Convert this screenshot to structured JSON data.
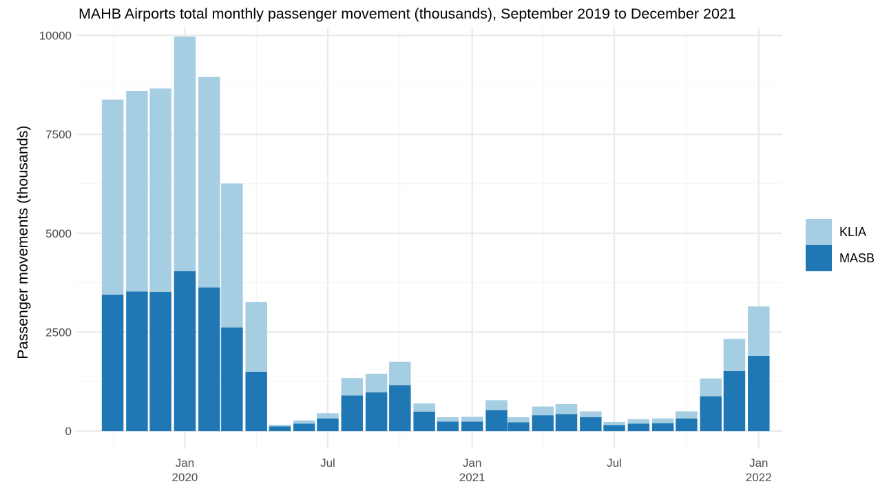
{
  "chart_data": {
    "type": "bar",
    "stacked": true,
    "title": "MAHB Airports total monthly passenger movement (thousands), September 2019 to December 2021",
    "xlabel": "",
    "ylabel": "Passenger movements (thousands)",
    "ylim": [
      -450,
      10200
    ],
    "yticks": [
      "0",
      "2500",
      "5000",
      "7500",
      "10000"
    ],
    "ytick_values": [
      0,
      2500,
      5000,
      7500,
      10000
    ],
    "grid": true,
    "legend_position": "right",
    "x_axis": "date",
    "xlim": [
      "2019-08-15",
      "2022-01-31"
    ],
    "xtick_labels": [
      {
        "date": "2020-01-01",
        "line1": "Jan",
        "line2": "2020"
      },
      {
        "date": "2020-07-01",
        "line1": "Jul",
        "line2": ""
      },
      {
        "date": "2021-01-01",
        "line1": "Jan",
        "line2": "2021"
      },
      {
        "date": "2021-07-01",
        "line1": "Jul",
        "line2": ""
      },
      {
        "date": "2022-01-01",
        "line1": "Jan",
        "line2": "2022"
      }
    ],
    "x": [
      "2019-10-01",
      "2019-11-01",
      "2019-12-01",
      "2020-01-01",
      "2020-02-01",
      "2020-03-01",
      "2020-04-01",
      "2020-05-01",
      "2020-06-01",
      "2020-07-01",
      "2020-08-01",
      "2020-09-01",
      "2020-10-01",
      "2020-11-01",
      "2020-12-01",
      "2021-01-01",
      "2021-02-01",
      "2021-03-01",
      "2021-04-01",
      "2021-05-01",
      "2021-06-01",
      "2021-07-01",
      "2021-08-01",
      "2021-09-01",
      "2021-10-01",
      "2021-11-01",
      "2021-12-01",
      "2022-01-01"
    ],
    "series": [
      {
        "name": "MASB",
        "color": "#1f78b4",
        "values": [
          3450,
          3530,
          3520,
          4040,
          3630,
          2620,
          1500,
          120,
          190,
          320,
          900,
          980,
          1160,
          490,
          240,
          240,
          530,
          220,
          400,
          430,
          350,
          150,
          190,
          200,
          320,
          880,
          1520,
          1900
        ]
      },
      {
        "name": "KLIA",
        "color": "#a6cee3",
        "values": [
          4930,
          5070,
          5140,
          5930,
          5320,
          3640,
          1760,
          40,
          80,
          130,
          440,
          470,
          590,
          210,
          110,
          120,
          250,
          130,
          220,
          250,
          150,
          80,
          110,
          120,
          180,
          450,
          810,
          1250
        ]
      }
    ]
  }
}
